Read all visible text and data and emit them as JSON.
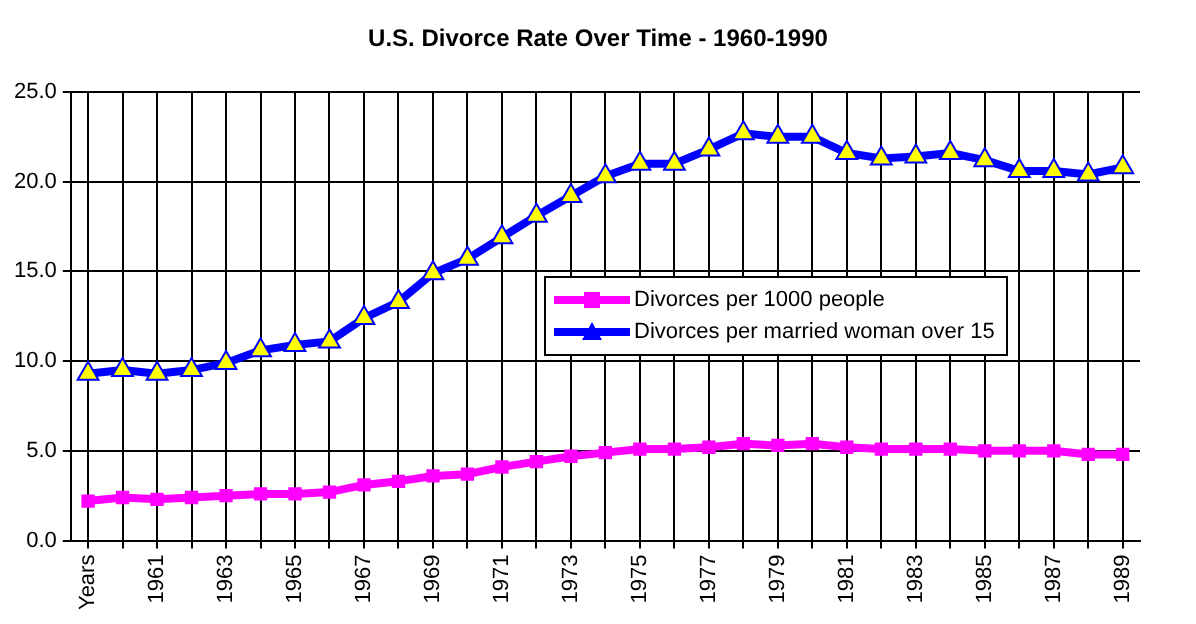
{
  "chart_data": {
    "type": "line",
    "title": "U.S. Divorce Rate Over Time - 1960-1990",
    "categories": [
      "Years",
      null,
      "1961",
      null,
      "1963",
      null,
      "1965",
      null,
      "1967",
      null,
      "1969",
      null,
      "1971",
      null,
      "1973",
      null,
      "1975",
      null,
      "1977",
      null,
      "1979",
      null,
      "1981",
      null,
      "1983",
      null,
      "1985",
      null,
      "1987",
      null,
      "1989"
    ],
    "series": [
      {
        "name": "Divorces per 1000 people",
        "color": "#ff00ff",
        "marker": "square",
        "values": [
          2.2,
          2.4,
          2.3,
          2.4,
          2.5,
          2.6,
          2.6,
          2.7,
          3.1,
          3.3,
          3.6,
          3.7,
          4.1,
          4.4,
          4.7,
          4.9,
          5.1,
          5.1,
          5.2,
          5.4,
          5.3,
          5.4,
          5.2,
          5.1,
          5.1,
          5.1,
          5.0,
          5.0,
          5.0,
          4.8,
          4.8
        ]
      },
      {
        "name": "Divorces per married woman over 15",
        "color": "#0000ff",
        "marker": "triangle",
        "values": [
          9.3,
          9.5,
          9.3,
          9.5,
          9.9,
          10.6,
          10.9,
          11.1,
          12.4,
          13.3,
          14.9,
          15.7,
          16.9,
          18.1,
          19.2,
          20.3,
          21.0,
          21.0,
          21.8,
          22.7,
          22.5,
          22.5,
          21.6,
          21.3,
          21.4,
          21.6,
          21.2,
          20.6,
          20.6,
          20.4,
          20.8
        ]
      }
    ],
    "ylim": [
      0,
      25
    ],
    "yticks": [
      {
        "value": 0,
        "label": "0.0"
      },
      {
        "value": 5,
        "label": "5.0"
      },
      {
        "value": 10,
        "label": "10.0"
      },
      {
        "value": 15,
        "label": "15.0"
      },
      {
        "value": 20,
        "label": "20.0"
      },
      {
        "value": 25,
        "label": "25.0"
      }
    ],
    "grid": true,
    "legend": "right"
  }
}
